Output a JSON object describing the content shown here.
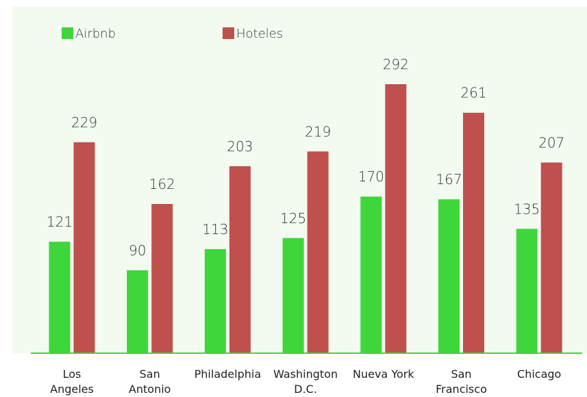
{
  "chart_data": {
    "type": "bar",
    "categories": [
      "Los\nAngeles",
      "San\nAntonio",
      "Philadelphia",
      "Washington\nD.C.",
      "Nueva York",
      "San\nFrancisco",
      "Chicago"
    ],
    "series": [
      {
        "name": "Airbnb",
        "color": "#3ed63a",
        "values": [
          121,
          90,
          113,
          125,
          170,
          167,
          135
        ]
      },
      {
        "name": "Hoteles",
        "color": "#c0504d",
        "values": [
          229,
          162,
          203,
          219,
          292,
          261,
          207
        ]
      }
    ],
    "grid": false
  }
}
